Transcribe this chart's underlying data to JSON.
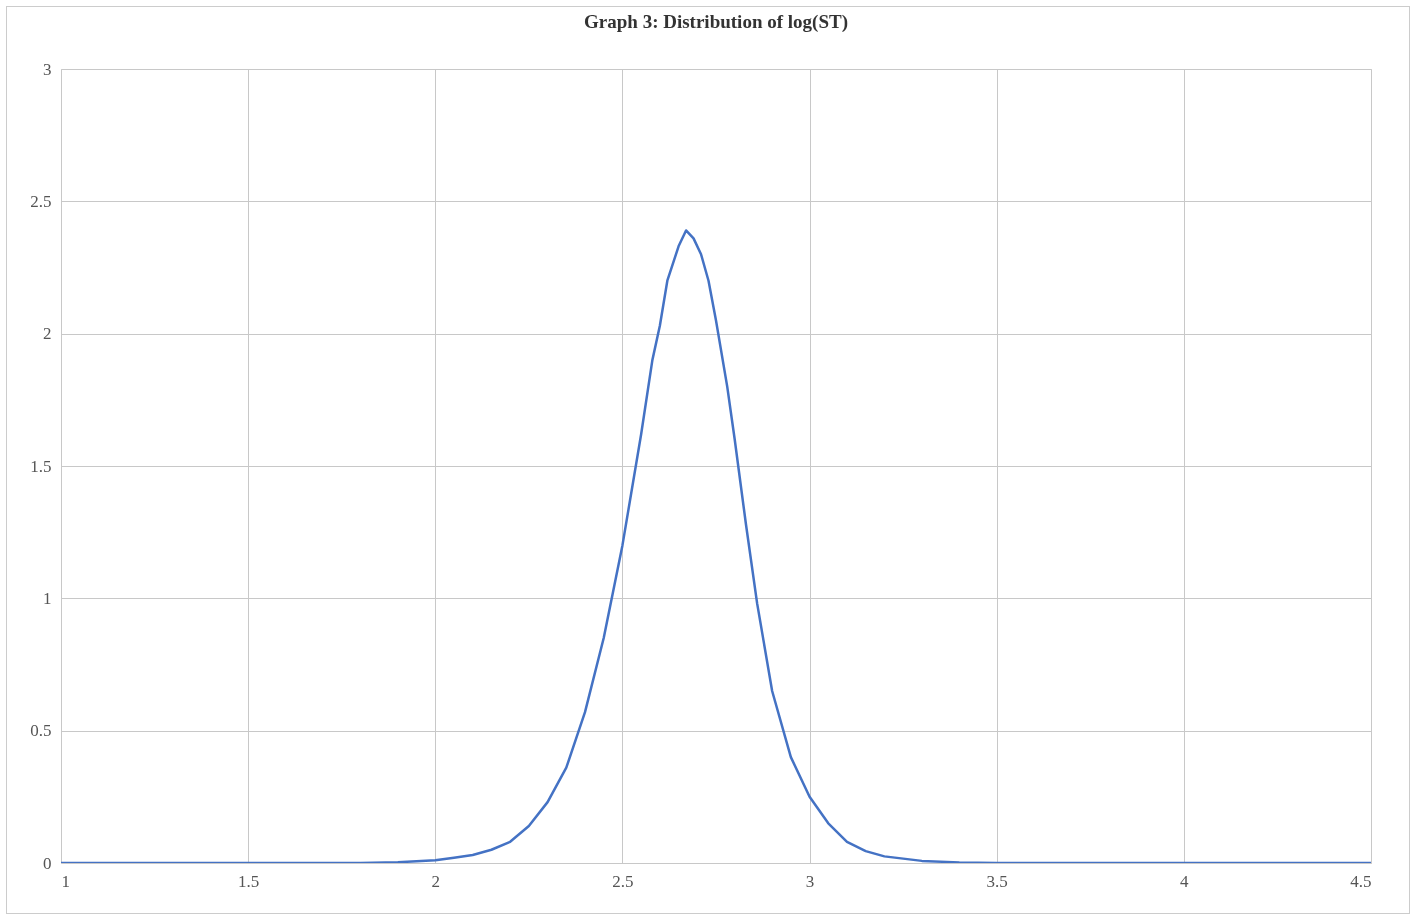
{
  "chart_data": {
    "type": "line",
    "title": "Graph 3: Distribution of  log(ST)",
    "x": [
      1.0,
      1.5,
      1.8,
      1.9,
      2.0,
      2.05,
      2.1,
      2.15,
      2.2,
      2.25,
      2.3,
      2.35,
      2.4,
      2.45,
      2.5,
      2.55,
      2.58,
      2.6,
      2.62,
      2.65,
      2.67,
      2.69,
      2.71,
      2.73,
      2.75,
      2.78,
      2.8,
      2.83,
      2.86,
      2.9,
      2.95,
      3.0,
      3.05,
      3.1,
      3.15,
      3.2,
      3.3,
      3.4,
      3.5,
      4.0,
      4.5
    ],
    "series": [
      {
        "color": "#4472c4",
        "values": [
          0,
          0,
          0,
          0.003,
          0.01,
          0.02,
          0.03,
          0.05,
          0.08,
          0.14,
          0.23,
          0.36,
          0.57,
          0.85,
          1.2,
          1.62,
          1.9,
          2.03,
          2.2,
          2.33,
          2.39,
          2.36,
          2.3,
          2.2,
          2.05,
          1.8,
          1.6,
          1.28,
          0.98,
          0.65,
          0.4,
          0.25,
          0.15,
          0.08,
          0.045,
          0.025,
          0.008,
          0.002,
          0,
          0,
          0
        ]
      }
    ],
    "xlim": [
      1,
      4.5
    ],
    "xticks": [
      1,
      1.5,
      2,
      2.5,
      3,
      3.5,
      4,
      4.5
    ],
    "ylim": [
      0,
      3
    ],
    "yticks": [
      0,
      0.5,
      1,
      1.5,
      2,
      2.5,
      3
    ],
    "grid": true
  }
}
